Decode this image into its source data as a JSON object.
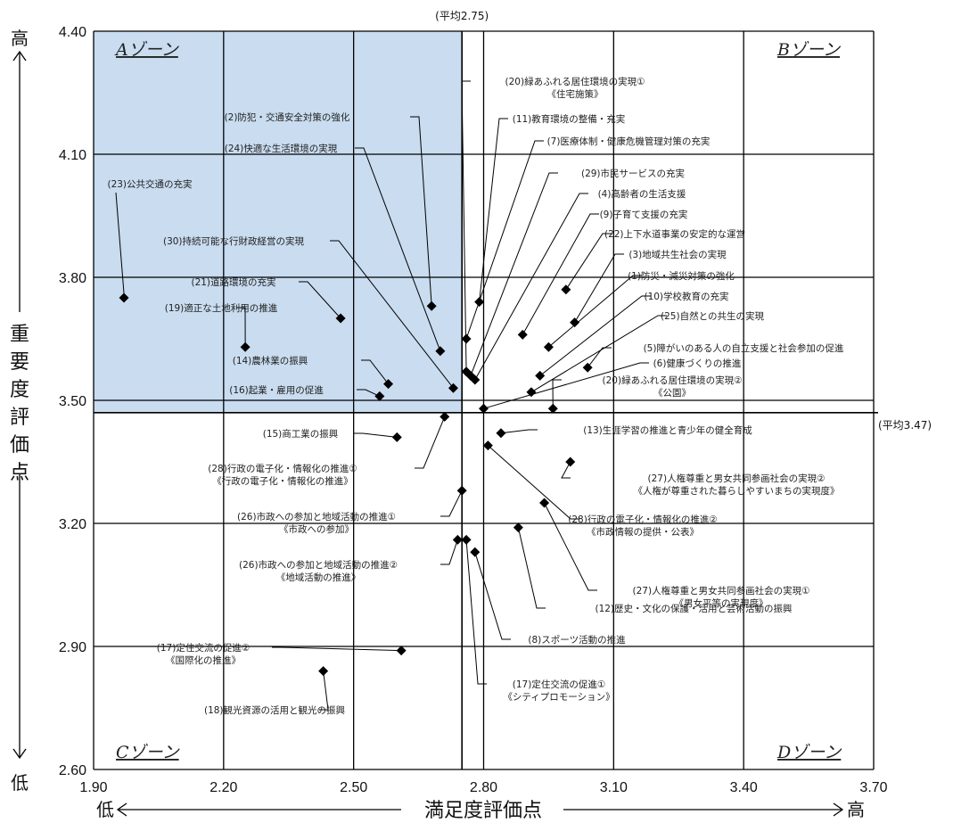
{
  "chart_data": {
    "type": "scatter",
    "xlabel": "満足度評価点",
    "ylabel": "重要度評価点",
    "x_low": "低",
    "x_high": "高",
    "y_low": "低",
    "y_high": "高",
    "xlim": [
      1.9,
      3.7
    ],
    "ylim": [
      2.6,
      4.4
    ],
    "x_ticks": [
      "1.90",
      "2.20",
      "2.50",
      "2.80",
      "3.10",
      "3.40",
      "3.70"
    ],
    "y_ticks": [
      "4.40",
      "4.10",
      "3.80",
      "3.50",
      "3.20",
      "2.90",
      "2.60"
    ],
    "x_tick_values": [
      1.9,
      2.2,
      2.5,
      2.8,
      3.1,
      3.4,
      3.7
    ],
    "y_tick_values": [
      4.4,
      4.1,
      3.8,
      3.5,
      3.2,
      2.9,
      2.6
    ],
    "avg_x": 2.75,
    "avg_y": 3.47,
    "avg_x_label": "(平均2.75)",
    "avg_y_label": "(平均3.47)",
    "zones": [
      "Aゾーン",
      "Bゾーン",
      "Cゾーン",
      "Dゾーン"
    ],
    "highlight_color": "#c9dcf0",
    "points": [
      {
        "label": "(23)公共交通の充実",
        "x": 1.97,
        "y": 3.75
      },
      {
        "label": "(30)持続可能な行財政経営の実現",
        "x": 2.73,
        "y": 3.53
      },
      {
        "label": "(21)道路環境の充実",
        "x": 2.47,
        "y": 3.7
      },
      {
        "label": "(19)適正な土地利用の推進",
        "x": 2.25,
        "y": 3.63
      },
      {
        "label": "(14)農林業の振興",
        "x": 2.58,
        "y": 3.54
      },
      {
        "label": "(16)起業・雇用の促進",
        "x": 2.56,
        "y": 3.51
      },
      {
        "label": "(2)防犯・交通安全対策の強化",
        "x": 2.68,
        "y": 3.73
      },
      {
        "label": "(24)快適な生活環境の実現",
        "x": 2.7,
        "y": 3.62
      },
      {
        "label": "(20)緑あふれる居住環境の実現①",
        "label2": "《住宅施策》",
        "x": 2.76,
        "y": 3.57
      },
      {
        "label": "(11)教育環境の整備・充実",
        "x": 2.79,
        "y": 3.74
      },
      {
        "label": "(7)医療体制・健康危機管理対策の充実",
        "x": 2.76,
        "y": 3.65
      },
      {
        "label": "(29)市民サービスの充実",
        "x": 2.77,
        "y": 3.56
      },
      {
        "label": "(4)高齢者の生活支援",
        "x": 2.78,
        "y": 3.55
      },
      {
        "label": "(9)子育て支援の充実",
        "x": 2.89,
        "y": 3.66
      },
      {
        "label": "(22)上下水道事業の安定的な運営",
        "x": 2.99,
        "y": 3.77
      },
      {
        "label": "(3)地域共生社会の実現",
        "x": 3.01,
        "y": 3.69
      },
      {
        "label": "(1)防災・減災対策の強化",
        "x": 2.95,
        "y": 3.63
      },
      {
        "label": "(10)学校教育の充実",
        "x": 2.93,
        "y": 3.56
      },
      {
        "label": "(25)自然との共生の実現",
        "x": 2.91,
        "y": 3.52
      },
      {
        "label": "(5)障がいのある人の自立支援と社会参加の促進",
        "x": 3.04,
        "y": 3.58
      },
      {
        "label": "(6)健康づくりの推進",
        "x": 2.8,
        "y": 3.48
      },
      {
        "label": "(20)緑あふれる居住環境の実現②",
        "label2": "《公園》",
        "x": 2.96,
        "y": 3.48
      },
      {
        "label": "(13)生涯学習の推進と青少年の健全育成",
        "x": 2.84,
        "y": 3.42
      },
      {
        "label": "(15)商工業の振興",
        "x": 2.6,
        "y": 3.41
      },
      {
        "label": "(28)行政の電子化・情報化の推進①",
        "label2": "《行政の電子化・情報化の推進》",
        "x": 2.71,
        "y": 3.46
      },
      {
        "label": "(27)人権尊重と男女共同参画社会の実現②",
        "label2": "《人権が尊重された暮らしやすいまちの実現度》",
        "x": 3.0,
        "y": 3.35
      },
      {
        "label": "(28)行政の電子化・情報化の推進②",
        "label2": "《市政情報の提供・公表》",
        "x": 2.81,
        "y": 3.39
      },
      {
        "label": "(26)市政への参加と地域活動の推進①",
        "label2": "《市政への参加》",
        "x": 2.75,
        "y": 3.28
      },
      {
        "label": "(27)人権尊重と男女共同参画社会の実現①",
        "label2": "《男女平等の実現度》",
        "x": 2.94,
        "y": 3.25
      },
      {
        "label": "(26)市政への参加と地域活動の推進②",
        "label2": "《地域活動の推進》",
        "x": 2.74,
        "y": 3.16
      },
      {
        "label": "(12)歴史・文化の保護・活用と芸術活動の振興",
        "x": 2.88,
        "y": 3.19
      },
      {
        "label": "(8)スポーツ活動の推進",
        "x": 2.78,
        "y": 3.13
      },
      {
        "label": "(17)定住交流の促進①",
        "label2": "《シティプロモーション》",
        "x": 2.76,
        "y": 3.16
      },
      {
        "label": "(17)定住交流の促進②",
        "label2": "《国際化の推進》",
        "x": 2.61,
        "y": 2.89
      },
      {
        "label": "(18)観光資源の活用と観光の振興",
        "x": 2.43,
        "y": 2.84
      }
    ]
  }
}
